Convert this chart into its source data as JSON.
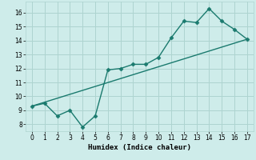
{
  "xlabel": "Humidex (Indice chaleur)",
  "background_color": "#ceecea",
  "grid_color": "#aed4d0",
  "line_color": "#1a7a6e",
  "xlim": [
    -0.5,
    17.5
  ],
  "ylim": [
    7.5,
    16.8
  ],
  "xticks": [
    0,
    1,
    2,
    3,
    4,
    5,
    6,
    7,
    8,
    9,
    10,
    11,
    12,
    13,
    14,
    15,
    16,
    17
  ],
  "yticks": [
    8,
    9,
    10,
    11,
    12,
    13,
    14,
    15,
    16
  ],
  "curve1_x": [
    0,
    1,
    2,
    3,
    4,
    5,
    6,
    7,
    8,
    9,
    10,
    11,
    12,
    13,
    14,
    15,
    16,
    17
  ],
  "curve1_y": [
    9.3,
    9.5,
    8.6,
    9.0,
    7.8,
    8.6,
    11.9,
    12.0,
    12.3,
    12.3,
    12.8,
    14.2,
    15.4,
    15.3,
    16.3,
    15.4,
    14.8,
    14.1
  ],
  "curve2_x": [
    0,
    17
  ],
  "curve2_y": [
    9.3,
    14.1
  ],
  "fontsize_label": 6.5,
  "fontsize_tick": 5.5,
  "marker": "D",
  "markersize": 2.5,
  "linewidth": 1.0
}
